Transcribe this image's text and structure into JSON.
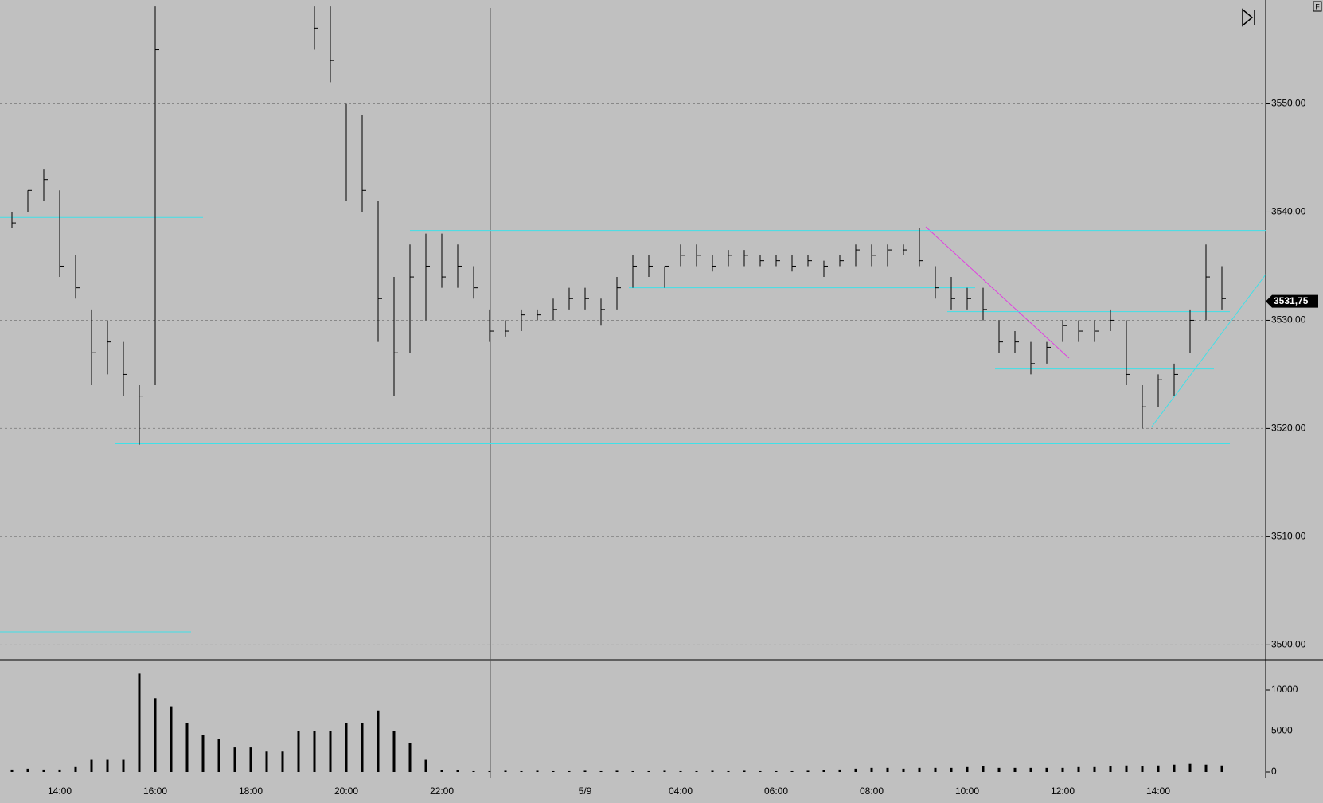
{
  "chart_data": {
    "type": "ohlc",
    "corner_label": "F",
    "categories": [
      null,
      null,
      null,
      "14:00",
      null,
      null,
      null,
      null,
      null,
      "16:00",
      null,
      null,
      null,
      null,
      null,
      "18:00",
      null,
      null,
      null,
      null,
      null,
      "20:00",
      null,
      null,
      null,
      null,
      null,
      "22:00",
      null,
      null,
      null,
      null,
      null,
      null,
      null,
      null,
      "5/9",
      null,
      null,
      null,
      null,
      null,
      "04:00",
      null,
      null,
      null,
      null,
      null,
      "06:00",
      null,
      null,
      null,
      null,
      null,
      "08:00",
      null,
      null,
      null,
      null,
      null,
      "10:00",
      null,
      null,
      null,
      null,
      null,
      "12:00",
      null,
      null,
      null,
      null,
      null,
      "14:00",
      null,
      null,
      null,
      null
    ],
    "high": [
      3540,
      3542,
      3544,
      3542,
      3536,
      3531,
      3530,
      3528,
      3524,
      3559,
      null,
      null,
      null,
      null,
      null,
      null,
      null,
      null,
      null,
      3559,
      3559,
      3550,
      3549,
      3541,
      3534,
      3537,
      3538,
      3538,
      3537,
      3535,
      3531,
      3530,
      3531,
      3531,
      3532,
      3533,
      3533,
      3532,
      3534,
      3536,
      3536,
      3535,
      3537,
      3537,
      3536,
      3536.5,
      3536.5,
      3536,
      3536,
      3536,
      3536,
      3535.5,
      3536,
      3537,
      3537,
      3537,
      3537,
      3538.5,
      3535,
      3534,
      3533,
      3533,
      3530,
      3529,
      3528,
      3528,
      3530,
      3530,
      3530,
      3531,
      3530,
      3524,
      3525,
      3526,
      3531,
      3537,
      3535
    ],
    "low": [
      3538.5,
      3540,
      3541,
      3534,
      3532,
      3524,
      3525,
      3523,
      3518.5,
      3524,
      null,
      null,
      null,
      null,
      null,
      null,
      null,
      null,
      null,
      3555,
      3552,
      3541,
      3540,
      3528,
      3523,
      3527,
      3530,
      3533,
      3533,
      3532,
      3528,
      3528.5,
      3529,
      3530,
      3530,
      3531,
      3531,
      3529.5,
      3531,
      3533,
      3534,
      3533,
      3535,
      3535,
      3534.5,
      3535,
      3535,
      3535,
      3535,
      3534.5,
      3535,
      3534,
      3535,
      3535,
      3535,
      3535,
      3536,
      3535,
      3532,
      3531,
      3531,
      3530,
      3527,
      3527,
      3525,
      3526,
      3528,
      3528,
      3528,
      3529,
      3524,
      3520,
      3522,
      3523,
      3527,
      3530,
      3531
    ],
    "close": [
      3539,
      3542,
      3543,
      3535,
      3533,
      3527,
      3528,
      3525,
      3523,
      3555,
      null,
      null,
      null,
      null,
      null,
      null,
      null,
      null,
      null,
      3557,
      3554,
      3545,
      3542,
      3532,
      3527,
      3534,
      3535,
      3534,
      3535,
      3533,
      3529,
      3529,
      3530.5,
      3530.5,
      3531,
      3532,
      3532,
      3531,
      3533,
      3535,
      3535,
      3535,
      3536,
      3536,
      3535,
      3536,
      3536,
      3535.5,
      3535.5,
      3535,
      3535.5,
      3535,
      3535.5,
      3536.5,
      3536,
      3536.5,
      3536.5,
      3535.5,
      3533,
      3532,
      3532,
      3531,
      3528,
      3528,
      3526,
      3527.5,
      3529.5,
      3529,
      3529,
      3530,
      3525,
      3522,
      3524.5,
      3525,
      3530,
      3534,
      3532
    ],
    "color": "#000000",
    "ylim": [
      3498.7,
      3559.6
    ],
    "yticks": [
      {
        "value": 3500,
        "label": "3500,00"
      },
      {
        "value": 3510,
        "label": "3510,00"
      },
      {
        "value": 3520,
        "label": "3520,00"
      },
      {
        "value": 3530,
        "label": "3530,00"
      },
      {
        "value": 3540,
        "label": "3540,00"
      },
      {
        "value": 3550,
        "label": "3550,00"
      }
    ],
    "grid": true,
    "last_price": 3531.75,
    "last_price_label": "3531,75",
    "levels": [
      3545,
      3539.5,
      3538.3,
      3533,
      3530.8,
      3525.5,
      3518.6,
      3501.2
    ],
    "level_color": "#40e0e8",
    "volume": {
      "values": [
        300,
        400,
        300,
        300,
        600,
        1500,
        1500,
        1500,
        12000,
        9000,
        8000,
        6000,
        4500,
        4000,
        3000,
        3000,
        2500,
        2500,
        5000,
        5000,
        5000,
        6000,
        6000,
        7500,
        5000,
        3500,
        1500,
        200,
        200,
        100,
        100,
        150,
        100,
        150,
        100,
        100,
        150,
        100,
        150,
        100,
        100,
        150,
        100,
        100,
        150,
        100,
        150,
        100,
        100,
        100,
        150,
        200,
        300,
        400,
        500,
        500,
        400,
        500,
        500,
        500,
        600,
        700,
        500,
        500,
        500,
        500,
        500,
        600,
        600,
        700,
        800,
        700,
        800,
        900,
        1000,
        900,
        800
      ],
      "ylim": [
        -777,
        13592
      ],
      "yticks": [
        0,
        5000,
        10000
      ],
      "color": "#000000"
    }
  }
}
